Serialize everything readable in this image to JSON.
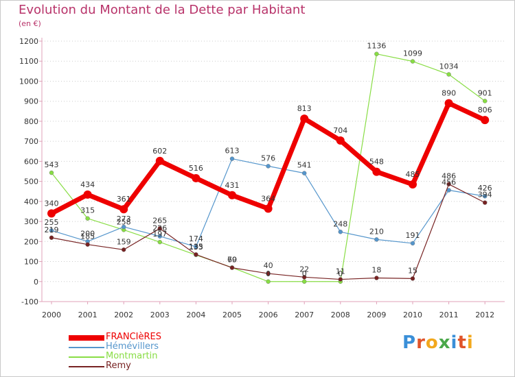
{
  "title": "Evolution du Montant de la Dette par Habitant",
  "subtitle": "(en €)",
  "brand": {
    "text": "Proxiti",
    "letter_colors": [
      "#3a8fd8",
      "#e0542a",
      "#f2a81d",
      "#4aa84a",
      "#3a8fd8",
      "#e0542a",
      "#f2a81d"
    ]
  },
  "chart_data": {
    "type": "line",
    "title": "Evolution du Montant de la Dette par Habitant",
    "subtitle": "(en €)",
    "x": [
      2000,
      2001,
      2002,
      2003,
      2004,
      2005,
      2006,
      2007,
      2008,
      2009,
      2010,
      2011,
      2012
    ],
    "x_tick_labels": [
      "2000",
      "2001",
      "2002",
      "2003",
      "2004",
      "2005",
      "2006",
      "2007",
      "2008",
      "2009",
      "2010",
      "2011",
      "2012"
    ],
    "ylim": [
      -100,
      1200
    ],
    "y_ticks": [
      -100,
      0,
      100,
      200,
      300,
      400,
      500,
      600,
      700,
      800,
      900,
      1000,
      1100,
      1200
    ],
    "y_tick_labels": [
      "-100",
      "0",
      "100",
      "200",
      "300",
      "400",
      "500",
      "600",
      "700",
      "800",
      "900",
      "1000",
      "1100",
      "1200"
    ],
    "grid": "horizontal dotted",
    "legend_position": "bottom-left",
    "series": [
      {
        "name": "FRANCIèRES",
        "color": "#ee0000",
        "values": [
          340,
          434,
          361,
          602,
          516,
          431,
          364,
          813,
          704,
          548,
          485,
          890,
          806
        ],
        "labels": [
          "340",
          "434",
          "361",
          "602",
          "516",
          "431",
          "364",
          "813",
          "704",
          "548",
          "485",
          "890",
          "806"
        ]
      },
      {
        "name": "Hémévillers",
        "color": "#5596cc",
        "values": [
          255,
          200,
          273,
          226,
          174,
          613,
          576,
          541,
          248,
          210,
          191,
          456,
          426
        ],
        "labels": [
          "255",
          "200",
          "273",
          "226",
          "174",
          "613",
          "576",
          "541",
          "248",
          "210",
          "191",
          "456",
          "426"
        ]
      },
      {
        "name": "Montmartin",
        "color": "#88dd44",
        "values": [
          543,
          315,
          258,
          197,
          133,
          70,
          0,
          0,
          0,
          1136,
          1099,
          1034,
          901
        ],
        "labels": [
          "543",
          "315",
          "258",
          "197",
          "133",
          "70",
          "0",
          "0",
          "0",
          "1136",
          "1099",
          "1034",
          "901"
        ]
      },
      {
        "name": "Remy",
        "color": "#772222",
        "values": [
          219,
          185,
          159,
          265,
          135,
          69,
          40,
          22,
          11,
          18,
          15,
          486,
          394
        ],
        "labels": [
          "219",
          "185",
          "159",
          "265",
          "135",
          "69",
          "40",
          "22",
          "11",
          "18",
          "15",
          "486",
          "394"
        ]
      }
    ]
  }
}
